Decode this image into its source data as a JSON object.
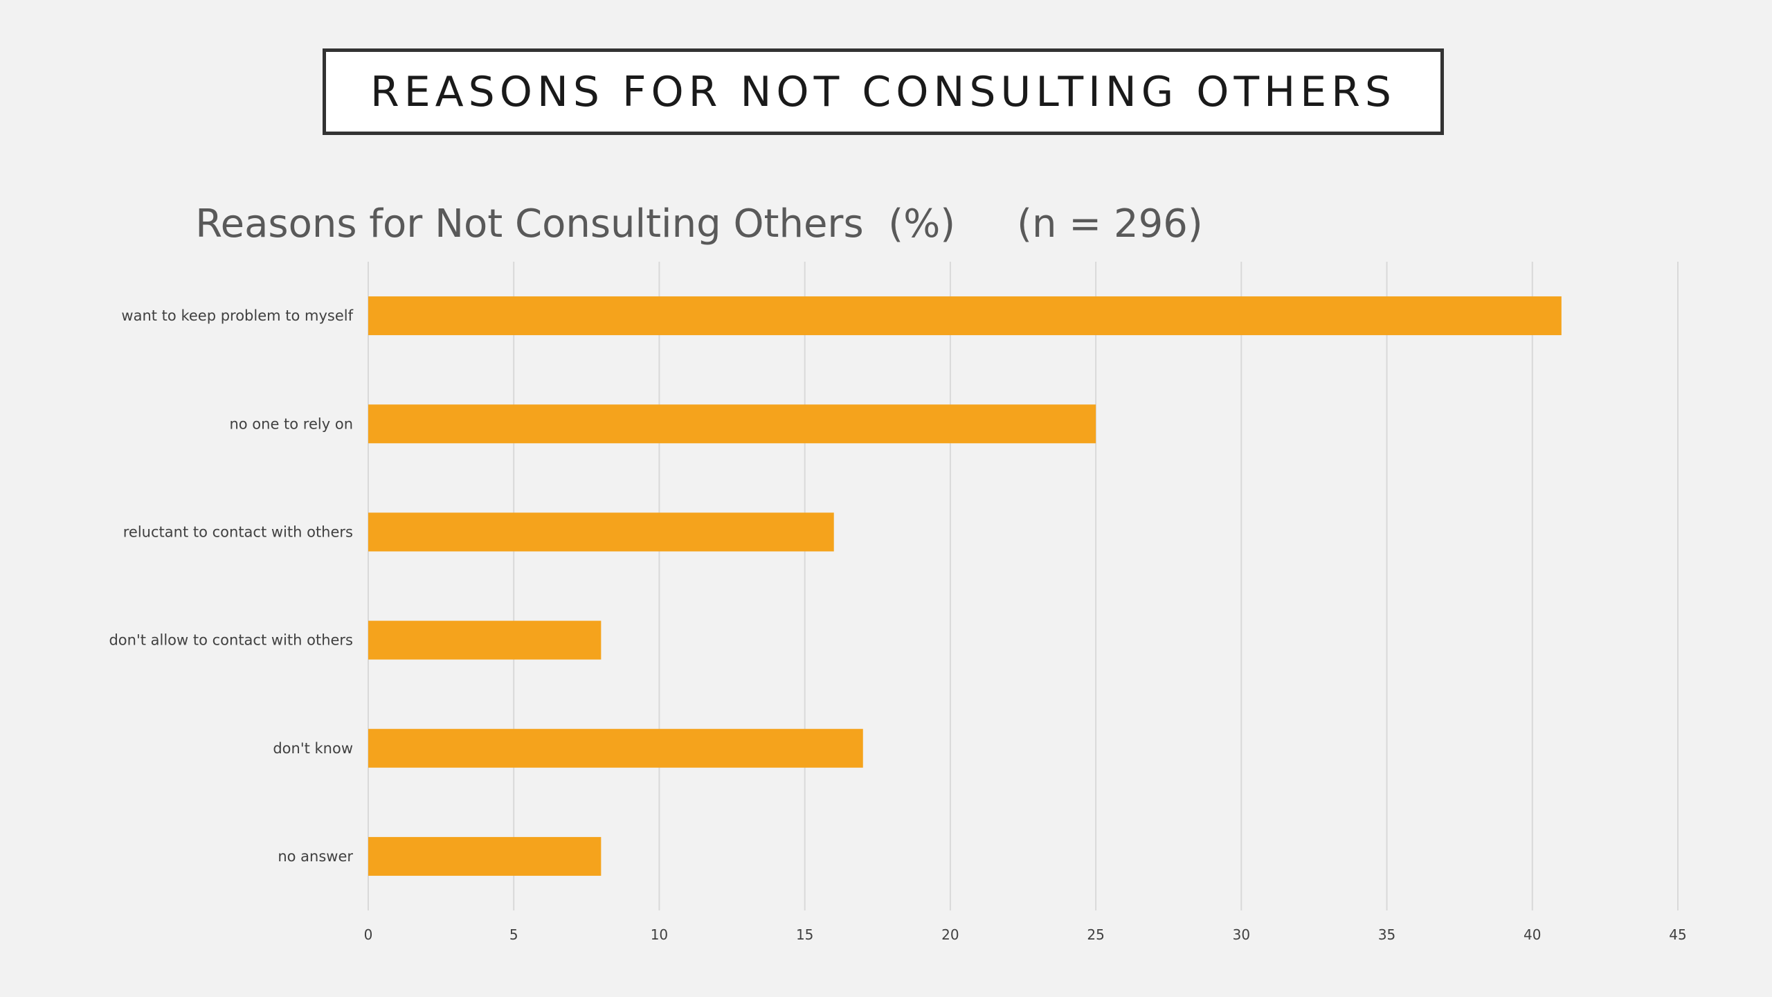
{
  "slide": {
    "heading": "REASONS FOR NOT CONSULTING OTHERS"
  },
  "chart_data": {
    "type": "bar",
    "orientation": "horizontal",
    "title": "Reasons for Not Consulting Others  (%)     (n = 296)",
    "categories": [
      "want to keep problem to myself",
      "no one to rely on",
      "reluctant to contact with others",
      "don't allow to contact with others",
      "don't know",
      "no answer"
    ],
    "values": [
      41,
      25,
      16,
      8,
      17,
      8
    ],
    "xlim": [
      0,
      45
    ],
    "xticks": [
      0,
      5,
      10,
      15,
      20,
      25,
      30,
      35,
      40,
      45
    ],
    "xlabel": "",
    "ylabel": "",
    "grid": "vertical",
    "legend": "none",
    "bar_color": "#f5a31c"
  }
}
